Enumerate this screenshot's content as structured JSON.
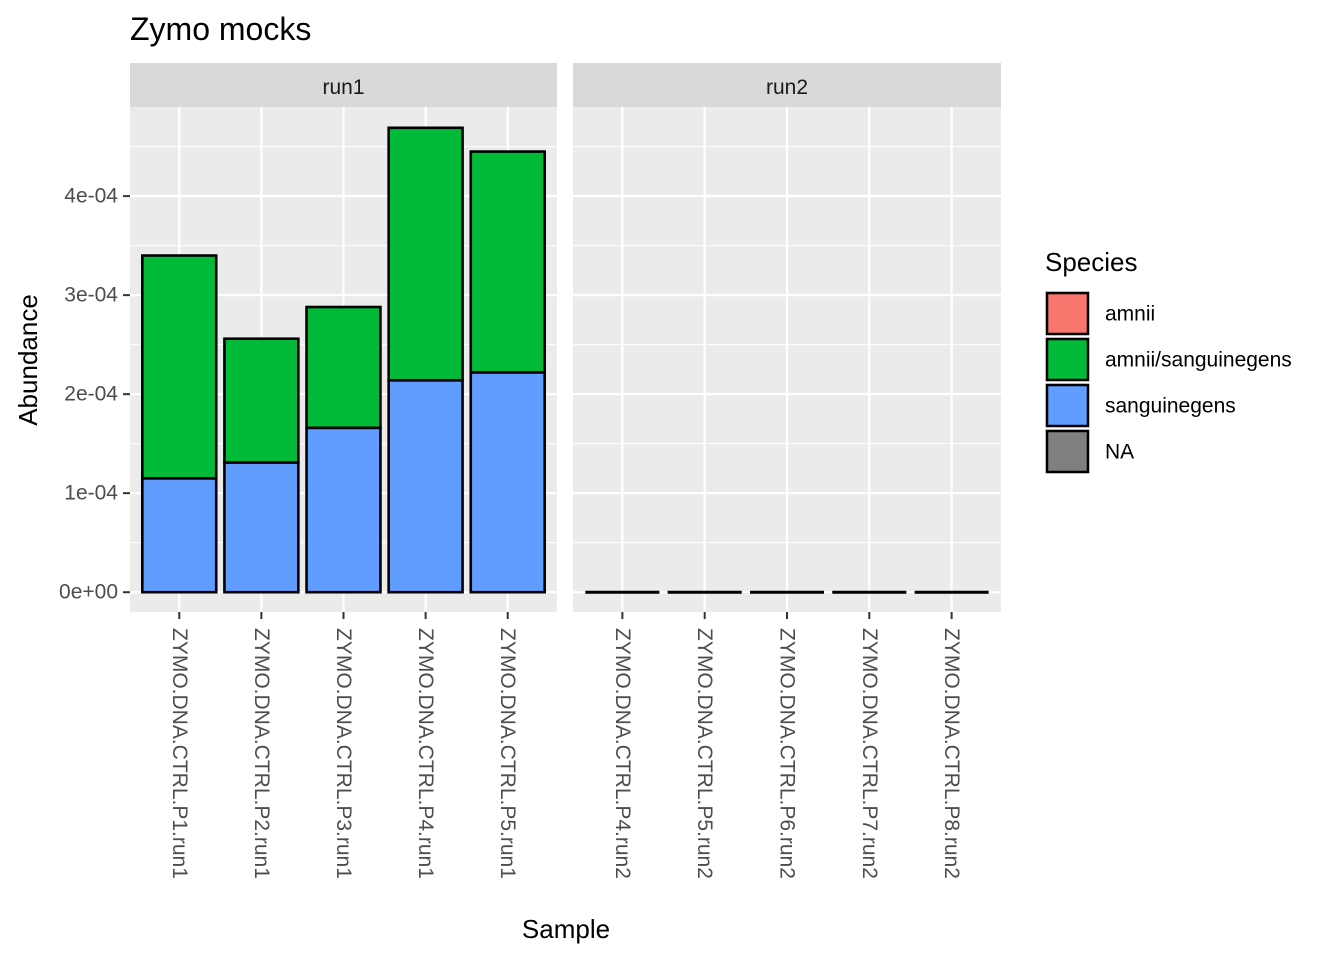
{
  "chart_data": {
    "type": "bar",
    "stacked": true,
    "title": "Zymo mocks",
    "xlabel": "Sample",
    "ylabel": "Abundance",
    "ylim": [
      -2e-05,
      0.00049
    ],
    "y_ticks": [
      0,
      0.0001,
      0.0002,
      0.0003,
      0.0004
    ],
    "y_tick_labels": [
      "0e+00",
      "1e-04",
      "2e-04",
      "3e-04",
      "4e-04"
    ],
    "grid": true,
    "legend": {
      "title": "Species",
      "position": "right",
      "entries": [
        {
          "label": "amnii",
          "color": "#F8766D"
        },
        {
          "label": "amnii/sanguinegens",
          "color": "#00BA38"
        },
        {
          "label": "sanguinegens",
          "color": "#619CFF"
        },
        {
          "label": "NA",
          "color": "#7F7F7F"
        }
      ]
    },
    "facets": [
      {
        "label": "run1",
        "categories": [
          "ZYMO.DNA.CTRL.P1.run1",
          "ZYMO.DNA.CTRL.P2.run1",
          "ZYMO.DNA.CTRL.P3.run1",
          "ZYMO.DNA.CTRL.P4.run1",
          "ZYMO.DNA.CTRL.P5.run1"
        ],
        "series": [
          {
            "name": "amnii",
            "values": [
              0,
              0,
              0,
              0,
              0
            ]
          },
          {
            "name": "amnii/sanguinegens",
            "values": [
              0.000225,
              0.000125,
              0.000122,
              0.000255,
              0.000223
            ]
          },
          {
            "name": "sanguinegens",
            "values": [
              0.000115,
              0.000131,
              0.000166,
              0.000214,
              0.000222
            ]
          },
          {
            "name": "NA",
            "values": [
              0,
              0,
              0,
              0,
              0
            ]
          }
        ]
      },
      {
        "label": "run2",
        "categories": [
          "ZYMO.DNA.CTRL.P4.run2",
          "ZYMO.DNA.CTRL.P5.run2",
          "ZYMO.DNA.CTRL.P6.run2",
          "ZYMO.DNA.CTRL.P7.run2",
          "ZYMO.DNA.CTRL.P8.run2"
        ],
        "series": [
          {
            "name": "amnii",
            "values": [
              0,
              0,
              0,
              0,
              0
            ]
          },
          {
            "name": "amnii/sanguinegens",
            "values": [
              0,
              0,
              0,
              0,
              0
            ]
          },
          {
            "name": "sanguinegens",
            "values": [
              0,
              0,
              0,
              0,
              0
            ]
          },
          {
            "name": "NA",
            "values": [
              0,
              0,
              0,
              0,
              0
            ]
          }
        ]
      }
    ]
  }
}
